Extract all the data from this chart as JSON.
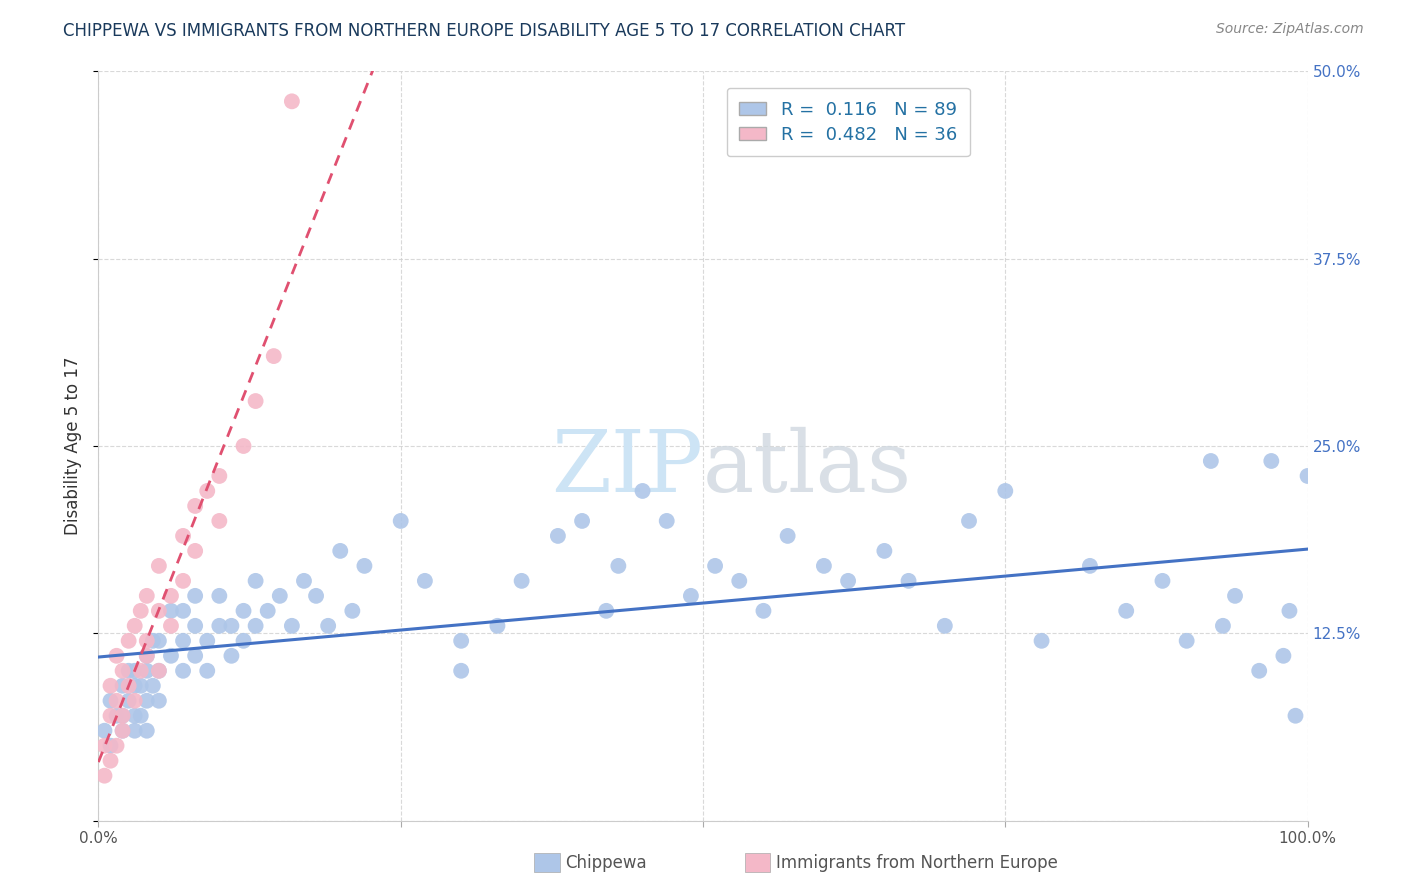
{
  "title": "CHIPPEWA VS IMMIGRANTS FROM NORTHERN EUROPE DISABILITY AGE 5 TO 17 CORRELATION CHART",
  "source_text": "Source: ZipAtlas.com",
  "ylabel": "Disability Age 5 to 17",
  "xlim": [
    0.0,
    1.0
  ],
  "ylim": [
    0.0,
    0.5
  ],
  "x_ticks": [
    0.0,
    0.25,
    0.5,
    0.75,
    1.0
  ],
  "x_tick_labels": [
    "0.0%",
    "",
    "",
    "",
    "100.0%"
  ],
  "y_ticks": [
    0.0,
    0.125,
    0.25,
    0.375,
    0.5
  ],
  "y_tick_labels_right": [
    "",
    "12.5%",
    "25.0%",
    "37.5%",
    "50.0%"
  ],
  "chippewa_R": 0.116,
  "chippewa_N": 89,
  "immigrants_R": 0.482,
  "immigrants_N": 36,
  "background_color": "#ffffff",
  "grid_color": "#d0d0d0",
  "chippewa_color": "#aec6e8",
  "chippewa_line_color": "#4472c4",
  "immigrants_color": "#f4b8c8",
  "immigrants_line_color": "#e05070",
  "watermark_color": "#cde4f5",
  "chippewa_scatter_x": [
    0.005,
    0.01,
    0.01,
    0.015,
    0.02,
    0.02,
    0.02,
    0.025,
    0.025,
    0.03,
    0.03,
    0.03,
    0.03,
    0.035,
    0.035,
    0.04,
    0.04,
    0.04,
    0.04,
    0.045,
    0.045,
    0.05,
    0.05,
    0.05,
    0.06,
    0.06,
    0.07,
    0.07,
    0.07,
    0.08,
    0.08,
    0.08,
    0.09,
    0.09,
    0.1,
    0.1,
    0.11,
    0.11,
    0.12,
    0.12,
    0.13,
    0.13,
    0.14,
    0.15,
    0.16,
    0.17,
    0.18,
    0.19,
    0.2,
    0.21,
    0.22,
    0.25,
    0.27,
    0.3,
    0.3,
    0.33,
    0.35,
    0.38,
    0.4,
    0.42,
    0.43,
    0.45,
    0.47,
    0.49,
    0.51,
    0.53,
    0.55,
    0.57,
    0.6,
    0.62,
    0.65,
    0.67,
    0.7,
    0.72,
    0.75,
    0.78,
    0.82,
    0.85,
    0.88,
    0.9,
    0.92,
    0.93,
    0.94,
    0.96,
    0.97,
    0.98,
    0.985,
    0.99,
    1.0
  ],
  "chippewa_scatter_y": [
    0.06,
    0.05,
    0.08,
    0.07,
    0.06,
    0.09,
    0.07,
    0.08,
    0.1,
    0.07,
    0.09,
    0.06,
    0.1,
    0.09,
    0.07,
    0.11,
    0.08,
    0.1,
    0.06,
    0.09,
    0.12,
    0.1,
    0.08,
    0.12,
    0.11,
    0.14,
    0.12,
    0.14,
    0.1,
    0.13,
    0.15,
    0.11,
    0.12,
    0.1,
    0.13,
    0.15,
    0.13,
    0.11,
    0.12,
    0.14,
    0.16,
    0.13,
    0.14,
    0.15,
    0.13,
    0.16,
    0.15,
    0.13,
    0.18,
    0.14,
    0.17,
    0.2,
    0.16,
    0.12,
    0.1,
    0.13,
    0.16,
    0.19,
    0.2,
    0.14,
    0.17,
    0.22,
    0.2,
    0.15,
    0.17,
    0.16,
    0.14,
    0.19,
    0.17,
    0.16,
    0.18,
    0.16,
    0.13,
    0.2,
    0.22,
    0.12,
    0.17,
    0.14,
    0.16,
    0.12,
    0.24,
    0.13,
    0.15,
    0.1,
    0.24,
    0.11,
    0.14,
    0.07,
    0.23
  ],
  "immigrants_scatter_x": [
    0.005,
    0.005,
    0.01,
    0.01,
    0.01,
    0.015,
    0.015,
    0.015,
    0.02,
    0.02,
    0.02,
    0.025,
    0.025,
    0.03,
    0.03,
    0.035,
    0.035,
    0.04,
    0.04,
    0.04,
    0.05,
    0.05,
    0.05,
    0.06,
    0.06,
    0.07,
    0.07,
    0.08,
    0.08,
    0.09,
    0.1,
    0.1,
    0.12,
    0.13,
    0.145,
    0.16
  ],
  "immigrants_scatter_y": [
    0.03,
    0.05,
    0.04,
    0.07,
    0.09,
    0.05,
    0.08,
    0.11,
    0.07,
    0.1,
    0.06,
    0.09,
    0.12,
    0.08,
    0.13,
    0.1,
    0.14,
    0.12,
    0.15,
    0.11,
    0.14,
    0.1,
    0.17,
    0.15,
    0.13,
    0.19,
    0.16,
    0.18,
    0.21,
    0.22,
    0.2,
    0.23,
    0.25,
    0.28,
    0.31,
    0.48
  ]
}
